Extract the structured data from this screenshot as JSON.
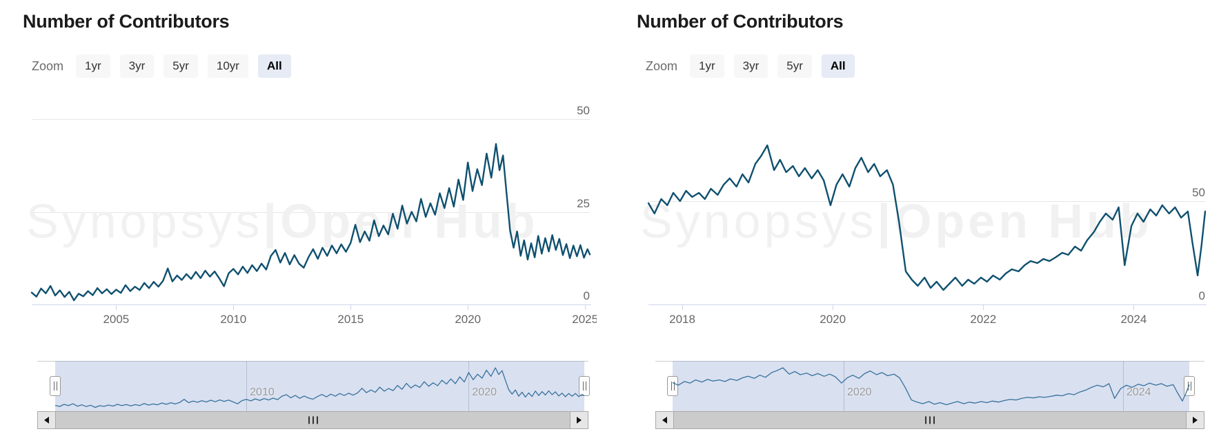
{
  "watermark": {
    "brand_left": "Synopsys",
    "separator": "|",
    "brand_right": "Open Hub"
  },
  "colors": {
    "line": "#0f506f",
    "navigator_line": "#36719c",
    "navigator_mask": "rgba(102,133,194,0.25)",
    "button_bg": "#f7f7f7",
    "selected_button_bg": "#e6ebf5",
    "grid": "#e6e6e6",
    "axis": "#ccd6eb",
    "axis_label": "#666666",
    "navigator_label": "#999999",
    "watermark": "#f1f1f1"
  },
  "chart_data": [
    {
      "type": "line",
      "title": "Number of Contributors",
      "zoom_label": "Zoom",
      "range_buttons": [
        {
          "label": "1yr",
          "selected": false
        },
        {
          "label": "3yr",
          "selected": false
        },
        {
          "label": "5yr",
          "selected": false
        },
        {
          "label": "10yr",
          "selected": false
        },
        {
          "label": "All",
          "selected": true
        }
      ],
      "y_axis": {
        "ticks": [
          0,
          25,
          50
        ],
        "min": 0,
        "max": 50
      },
      "x_axis": {
        "ticks": [
          2005,
          2010,
          2015,
          2020,
          2025
        ],
        "min": 2001.4,
        "max": 2025.2
      },
      "navigator": {
        "labels": [
          2010,
          2020
        ]
      },
      "scrollbar": {
        "left_icon": "left-triangle-icon",
        "right_icon": "right-triangle-icon"
      },
      "series": [
        {
          "name": "Contributors",
          "points": [
            [
              2001.4,
              3.2
            ],
            [
              2001.6,
              2.1
            ],
            [
              2001.8,
              4.3
            ],
            [
              2002.0,
              3.0
            ],
            [
              2002.2,
              5.0
            ],
            [
              2002.4,
              2.4
            ],
            [
              2002.6,
              3.8
            ],
            [
              2002.8,
              2.0
            ],
            [
              2003.0,
              3.4
            ],
            [
              2003.2,
              1.1
            ],
            [
              2003.4,
              2.9
            ],
            [
              2003.6,
              2.2
            ],
            [
              2003.8,
              3.6
            ],
            [
              2004.0,
              2.5
            ],
            [
              2004.2,
              4.4
            ],
            [
              2004.4,
              3.0
            ],
            [
              2004.6,
              4.1
            ],
            [
              2004.8,
              2.8
            ],
            [
              2005.0,
              4.0
            ],
            [
              2005.2,
              3.1
            ],
            [
              2005.4,
              5.2
            ],
            [
              2005.6,
              3.6
            ],
            [
              2005.8,
              4.8
            ],
            [
              2006.0,
              3.9
            ],
            [
              2006.2,
              5.8
            ],
            [
              2006.4,
              4.4
            ],
            [
              2006.6,
              6.1
            ],
            [
              2006.8,
              4.8
            ],
            [
              2007.0,
              6.4
            ],
            [
              2007.2,
              9.7
            ],
            [
              2007.4,
              6.2
            ],
            [
              2007.6,
              7.8
            ],
            [
              2007.8,
              6.6
            ],
            [
              2008.0,
              8.2
            ],
            [
              2008.2,
              6.9
            ],
            [
              2008.4,
              8.8
            ],
            [
              2008.6,
              7.1
            ],
            [
              2008.8,
              9.1
            ],
            [
              2009.0,
              7.5
            ],
            [
              2009.2,
              8.9
            ],
            [
              2009.4,
              7.0
            ],
            [
              2009.6,
              4.9
            ],
            [
              2009.8,
              8.4
            ],
            [
              2010.0,
              9.6
            ],
            [
              2010.2,
              8.1
            ],
            [
              2010.4,
              10.2
            ],
            [
              2010.6,
              8.5
            ],
            [
              2010.8,
              10.6
            ],
            [
              2011.0,
              9.0
            ],
            [
              2011.2,
              11.0
            ],
            [
              2011.4,
              9.4
            ],
            [
              2011.6,
              13.1
            ],
            [
              2011.8,
              14.7
            ],
            [
              2012.0,
              11.3
            ],
            [
              2012.2,
              13.9
            ],
            [
              2012.4,
              10.8
            ],
            [
              2012.6,
              13.3
            ],
            [
              2012.8,
              11.0
            ],
            [
              2013.0,
              9.9
            ],
            [
              2013.2,
              12.7
            ],
            [
              2013.4,
              14.9
            ],
            [
              2013.6,
              12.3
            ],
            [
              2013.8,
              15.3
            ],
            [
              2014.0,
              13.1
            ],
            [
              2014.2,
              15.9
            ],
            [
              2014.4,
              13.8
            ],
            [
              2014.6,
              16.2
            ],
            [
              2014.8,
              14.2
            ],
            [
              2015.0,
              16.6
            ],
            [
              2015.2,
              21.5
            ],
            [
              2015.4,
              16.8
            ],
            [
              2015.6,
              19.7
            ],
            [
              2015.8,
              17.2
            ],
            [
              2016.0,
              22.7
            ],
            [
              2016.2,
              18.4
            ],
            [
              2016.4,
              21.3
            ],
            [
              2016.6,
              18.9
            ],
            [
              2016.8,
              24.5
            ],
            [
              2017.0,
              20.4
            ],
            [
              2017.2,
              26.7
            ],
            [
              2017.4,
              21.8
            ],
            [
              2017.6,
              25.0
            ],
            [
              2017.8,
              22.4
            ],
            [
              2018.0,
              28.5
            ],
            [
              2018.2,
              23.6
            ],
            [
              2018.4,
              27.3
            ],
            [
              2018.6,
              24.2
            ],
            [
              2018.8,
              30.0
            ],
            [
              2019.0,
              26.0
            ],
            [
              2019.2,
              31.4
            ],
            [
              2019.4,
              26.4
            ],
            [
              2019.6,
              33.7
            ],
            [
              2019.8,
              28.2
            ],
            [
              2020.0,
              38.3
            ],
            [
              2020.2,
              30.6
            ],
            [
              2020.4,
              36.5
            ],
            [
              2020.6,
              32.2
            ],
            [
              2020.8,
              40.7
            ],
            [
              2021.0,
              34.2
            ],
            [
              2021.2,
              43.3
            ],
            [
              2021.35,
              36.2
            ],
            [
              2021.5,
              40.2
            ],
            [
              2021.65,
              30.0
            ],
            [
              2021.8,
              20.0
            ],
            [
              2021.95,
              15.3
            ],
            [
              2022.1,
              19.7
            ],
            [
              2022.25,
              13.1
            ],
            [
              2022.4,
              17.3
            ],
            [
              2022.55,
              12.1
            ],
            [
              2022.7,
              16.5
            ],
            [
              2022.85,
              12.7
            ],
            [
              2023.0,
              18.5
            ],
            [
              2023.15,
              13.7
            ],
            [
              2023.3,
              17.9
            ],
            [
              2023.45,
              14.3
            ],
            [
              2023.6,
              18.7
            ],
            [
              2023.75,
              14.7
            ],
            [
              2023.9,
              17.7
            ],
            [
              2024.05,
              13.3
            ],
            [
              2024.2,
              16.3
            ],
            [
              2024.35,
              12.5
            ],
            [
              2024.5,
              15.9
            ],
            [
              2024.65,
              13.0
            ],
            [
              2024.8,
              16.0
            ],
            [
              2024.95,
              12.6
            ],
            [
              2025.1,
              14.9
            ],
            [
              2025.2,
              13.5
            ]
          ]
        }
      ]
    },
    {
      "type": "line",
      "title": "Number of Contributors",
      "zoom_label": "Zoom",
      "range_buttons": [
        {
          "label": "1yr",
          "selected": false
        },
        {
          "label": "3yr",
          "selected": false
        },
        {
          "label": "5yr",
          "selected": false
        },
        {
          "label": "All",
          "selected": true
        }
      ],
      "y_axis": {
        "ticks": [
          0,
          50
        ],
        "min": 0,
        "max": 83
      },
      "x_axis": {
        "ticks": [
          2018,
          2020,
          2022,
          2024
        ],
        "min": 2017.55,
        "max": 2024.95
      },
      "navigator": {
        "labels": [
          2020,
          2024
        ]
      },
      "scrollbar": {
        "left_icon": "left-triangle-icon",
        "right_icon": "right-triangle-icon"
      },
      "series": [
        {
          "name": "Contributors",
          "points": [
            [
              2017.55,
              49
            ],
            [
              2017.63,
              44
            ],
            [
              2017.72,
              51
            ],
            [
              2017.8,
              48
            ],
            [
              2017.88,
              54
            ],
            [
              2017.97,
              50
            ],
            [
              2018.05,
              55
            ],
            [
              2018.13,
              52
            ],
            [
              2018.22,
              54
            ],
            [
              2018.3,
              51
            ],
            [
              2018.38,
              56
            ],
            [
              2018.47,
              53
            ],
            [
              2018.55,
              58
            ],
            [
              2018.63,
              61
            ],
            [
              2018.72,
              57
            ],
            [
              2018.8,
              63
            ],
            [
              2018.88,
              59
            ],
            [
              2018.97,
              68
            ],
            [
              2019.05,
              72
            ],
            [
              2019.13,
              77
            ],
            [
              2019.22,
              65
            ],
            [
              2019.3,
              70
            ],
            [
              2019.38,
              64
            ],
            [
              2019.47,
              67
            ],
            [
              2019.55,
              62
            ],
            [
              2019.63,
              66
            ],
            [
              2019.72,
              61
            ],
            [
              2019.8,
              65
            ],
            [
              2019.88,
              60
            ],
            [
              2019.97,
              48
            ],
            [
              2020.05,
              58
            ],
            [
              2020.13,
              63
            ],
            [
              2020.22,
              57
            ],
            [
              2020.3,
              66
            ],
            [
              2020.38,
              71
            ],
            [
              2020.47,
              64
            ],
            [
              2020.55,
              68
            ],
            [
              2020.63,
              62
            ],
            [
              2020.72,
              65
            ],
            [
              2020.8,
              58
            ],
            [
              2020.88,
              40
            ],
            [
              2020.97,
              16
            ],
            [
              2021.05,
              12
            ],
            [
              2021.13,
              9
            ],
            [
              2021.22,
              13
            ],
            [
              2021.3,
              8
            ],
            [
              2021.38,
              11
            ],
            [
              2021.47,
              7
            ],
            [
              2021.55,
              10
            ],
            [
              2021.63,
              13
            ],
            [
              2021.72,
              9
            ],
            [
              2021.8,
              12
            ],
            [
              2021.88,
              10
            ],
            [
              2021.97,
              13
            ],
            [
              2022.05,
              11
            ],
            [
              2022.13,
              14
            ],
            [
              2022.22,
              12
            ],
            [
              2022.3,
              15
            ],
            [
              2022.38,
              17
            ],
            [
              2022.47,
              16
            ],
            [
              2022.55,
              19
            ],
            [
              2022.63,
              21
            ],
            [
              2022.72,
              20
            ],
            [
              2022.8,
              22
            ],
            [
              2022.88,
              21
            ],
            [
              2022.97,
              23
            ],
            [
              2023.05,
              25
            ],
            [
              2023.13,
              24
            ],
            [
              2023.22,
              28
            ],
            [
              2023.3,
              26
            ],
            [
              2023.38,
              31
            ],
            [
              2023.47,
              35
            ],
            [
              2023.55,
              40
            ],
            [
              2023.63,
              44
            ],
            [
              2023.72,
              41
            ],
            [
              2023.8,
              47
            ],
            [
              2023.88,
              19
            ],
            [
              2023.97,
              38
            ],
            [
              2024.05,
              44
            ],
            [
              2024.13,
              40
            ],
            [
              2024.22,
              46
            ],
            [
              2024.3,
              43
            ],
            [
              2024.38,
              48
            ],
            [
              2024.47,
              44
            ],
            [
              2024.55,
              47
            ],
            [
              2024.63,
              42
            ],
            [
              2024.72,
              45
            ],
            [
              2024.78,
              30
            ],
            [
              2024.85,
              14
            ],
            [
              2024.9,
              28
            ],
            [
              2024.95,
              45
            ]
          ]
        }
      ]
    }
  ]
}
